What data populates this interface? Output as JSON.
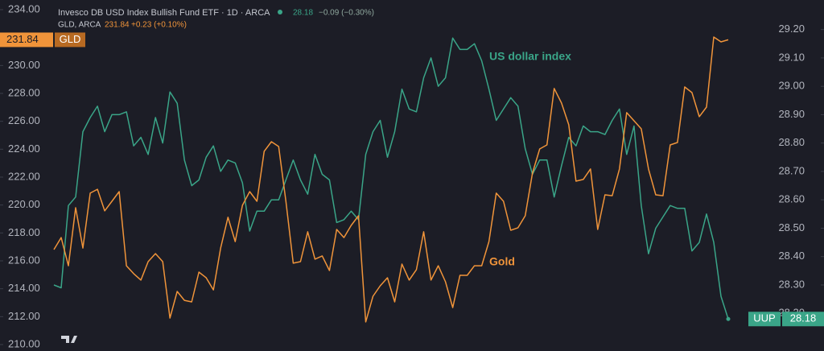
{
  "chart_data": {
    "type": "line",
    "title": "Invesco DB USD Index Bullish Fund ETF · 1D · ARCA",
    "title_change": "−0.09 (−0.30%)",
    "subtitle": "GLD, ARCA",
    "subtitle_change": "+0.23 (+0.10%)",
    "annotations": [
      "US dollar index",
      "Gold"
    ],
    "ylim": [
      210,
      234
    ],
    "yticks": [
      {
        "value": 210,
        "label": "210.00"
      },
      {
        "value": 212,
        "label": "212.00"
      },
      {
        "value": 214,
        "label": "214.00"
      },
      {
        "value": 216,
        "label": "216.00"
      },
      {
        "value": 218,
        "label": "218.00"
      },
      {
        "value": 220,
        "label": "220.00"
      },
      {
        "value": 222,
        "label": "222.00"
      },
      {
        "value": 224,
        "label": "224.00"
      },
      {
        "value": 226,
        "label": "226.00"
      },
      {
        "value": 228,
        "label": "228.00"
      },
      {
        "value": 230,
        "label": "230.00"
      },
      {
        "value": 232,
        "label": "232.00"
      },
      {
        "value": 234,
        "label": "234.00"
      }
    ],
    "y2lim": [
      28.09,
      29.27
    ],
    "y2ticks": [
      {
        "value": 28.2,
        "label": "28.20"
      },
      {
        "value": 28.3,
        "label": "28.30"
      },
      {
        "value": 28.4,
        "label": "28.40"
      },
      {
        "value": 28.5,
        "label": "28.50"
      },
      {
        "value": 28.6,
        "label": "28.60"
      },
      {
        "value": 28.7,
        "label": "28.70"
      },
      {
        "value": 28.8,
        "label": "28.80"
      },
      {
        "value": 28.9,
        "label": "28.90"
      },
      {
        "value": 29.0,
        "label": "29.00"
      },
      {
        "value": 29.1,
        "label": "29.10"
      },
      {
        "value": 29.2,
        "label": "29.20"
      }
    ],
    "series": [
      {
        "name": "UUP",
        "color": "#3aa588",
        "axis": "y2",
        "values": [
          28.3,
          28.29,
          28.58,
          28.61,
          28.84,
          28.89,
          28.93,
          28.84,
          28.9,
          28.9,
          28.91,
          28.79,
          28.82,
          28.76,
          28.89,
          28.8,
          28.98,
          28.94,
          28.74,
          28.65,
          28.67,
          28.75,
          28.79,
          28.7,
          28.74,
          28.73,
          28.66,
          28.49,
          28.56,
          28.56,
          28.6,
          28.6,
          28.67,
          28.74,
          28.67,
          28.62,
          28.76,
          28.69,
          28.67,
          28.52,
          28.53,
          28.56,
          28.53,
          28.76,
          28.84,
          28.88,
          28.75,
          28.84,
          28.99,
          28.92,
          28.91,
          29.03,
          29.1,
          29.0,
          29.03,
          29.17,
          29.13,
          29.13,
          29.15,
          29.09,
          28.99,
          28.88,
          28.92,
          28.96,
          28.93,
          28.78,
          28.69,
          28.74,
          28.74,
          28.61,
          28.72,
          28.82,
          28.79,
          28.86,
          28.84,
          28.84,
          28.83,
          28.88,
          28.92,
          28.76,
          28.86,
          28.58,
          28.41,
          28.5,
          28.54,
          28.58,
          28.57,
          28.57,
          28.42,
          28.45,
          28.55,
          28.45,
          28.26,
          28.18
        ]
      },
      {
        "name": "GLD",
        "color": "#f0943a",
        "values": [
          216.81,
          217.67,
          215.65,
          219.81,
          216.92,
          220.85,
          221.13,
          219.58,
          220.27,
          220.96,
          215.65,
          215.08,
          214.62,
          215.94,
          216.52,
          215.94,
          211.9,
          213.81,
          213.17,
          213.06,
          215.19,
          214.79,
          213.92,
          216.92,
          219.12,
          217.38,
          219.98,
          220.96,
          220.27,
          223.85,
          224.54,
          224.19,
          220.27,
          215.83,
          215.94,
          218.08,
          216.12,
          216.35,
          215.31,
          218.25,
          217.67,
          218.54,
          219.23,
          211.62,
          213.46,
          214.21,
          214.79,
          213.06,
          215.77,
          214.62,
          215.37,
          218.08,
          214.62,
          215.65,
          214.5,
          212.65,
          214.96,
          214.96,
          215.65,
          215.65,
          217.38,
          220.85,
          220.27,
          218.19,
          218.37,
          219.23,
          222.29,
          224.02,
          224.31,
          228.35,
          227.31,
          225.75,
          221.71,
          221.83,
          222.58,
          218.25,
          220.73,
          220.67,
          222.58,
          226.62,
          226.04,
          225.46,
          222.58,
          220.73,
          220.67,
          224.31,
          224.48,
          228.46,
          228.06,
          226.33,
          227.02,
          232.04,
          231.69,
          231.84
        ]
      }
    ]
  }
}
